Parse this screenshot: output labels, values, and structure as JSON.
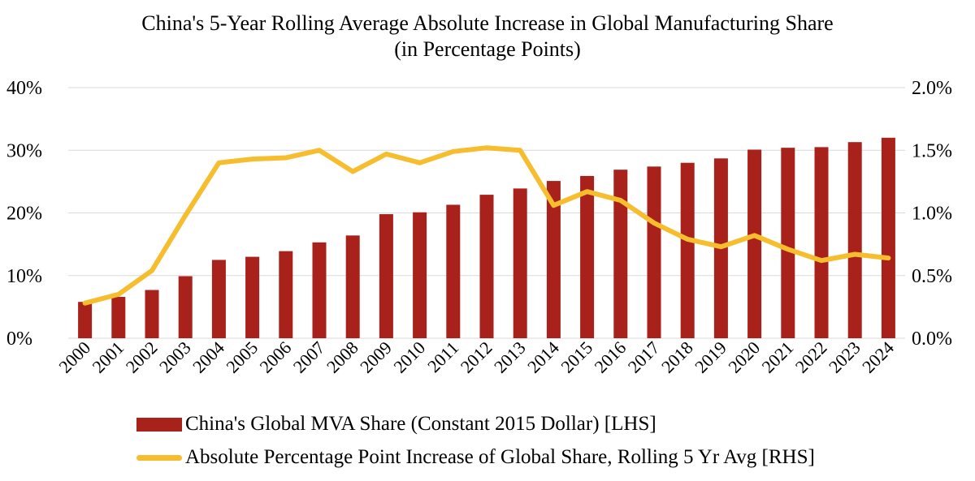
{
  "chart_data": {
    "type": "bar+line",
    "title": "China's 5-Year Rolling Average Absolute Increase in Global Manufacturing Share",
    "subtitle": "(in Percentage Points)",
    "categories": [
      "2000",
      "2001",
      "2002",
      "2003",
      "2004",
      "2005",
      "2006",
      "2007",
      "2008",
      "2009",
      "2010",
      "2011",
      "2012",
      "2013",
      "2014",
      "2015",
      "2016",
      "2017",
      "2018",
      "2019",
      "2020",
      "2021",
      "2022",
      "2023",
      "2024"
    ],
    "series": [
      {
        "name": "China's Global MVA Share (Constant 2015 Dollar) [LHS]",
        "type": "bar",
        "axis": "left",
        "color": "#a8211b",
        "values": [
          5.8,
          6.6,
          7.7,
          9.9,
          12.5,
          13.0,
          13.9,
          15.3,
          16.4,
          19.8,
          20.1,
          21.3,
          22.9,
          23.9,
          25.1,
          25.9,
          26.9,
          27.4,
          28.0,
          28.7,
          30.1,
          30.4,
          30.5,
          31.3,
          32.0
        ]
      },
      {
        "name": "Absolute Percentage Point Increase of Global Share, Rolling 5 Yr Avg [RHS]",
        "type": "line",
        "axis": "right",
        "color": "#f6bd2f",
        "values": [
          0.28,
          0.35,
          0.54,
          0.98,
          1.4,
          1.43,
          1.44,
          1.5,
          1.33,
          1.47,
          1.4,
          1.49,
          1.52,
          1.5,
          1.06,
          1.17,
          1.1,
          0.92,
          0.79,
          0.73,
          0.82,
          0.71,
          0.62,
          0.67,
          0.64
        ]
      }
    ],
    "y_left": {
      "min": 0,
      "max": 40,
      "ticks": [
        "0%",
        "10%",
        "20%",
        "30%",
        "40%"
      ],
      "tick_values": [
        0,
        10,
        20,
        30,
        40
      ]
    },
    "y_right": {
      "min": 0,
      "max": 2,
      "ticks": [
        "0.0%",
        "0.5%",
        "1.0%",
        "1.5%",
        "2.0%"
      ],
      "tick_values": [
        0,
        0.5,
        1.0,
        1.5,
        2.0
      ]
    },
    "grid": true,
    "legend_position": "bottom"
  }
}
